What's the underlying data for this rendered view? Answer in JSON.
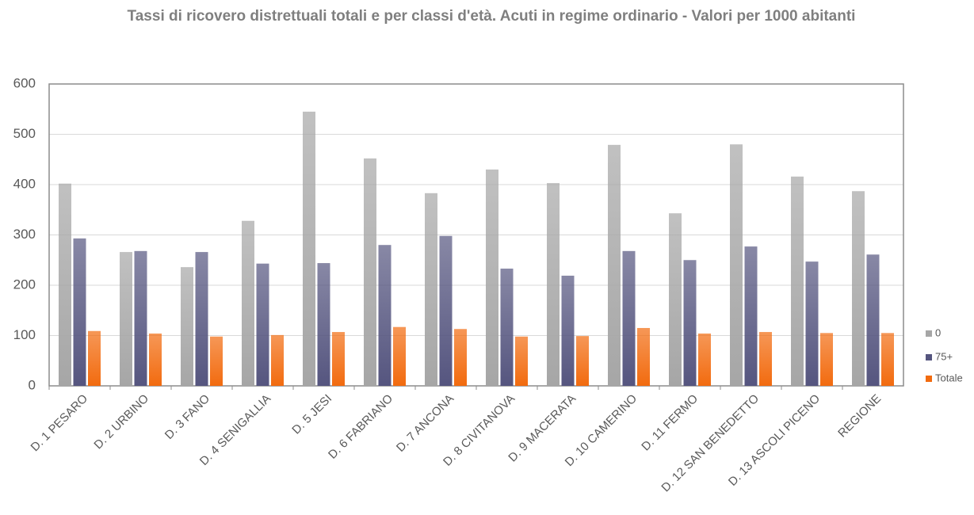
{
  "chart_data": {
    "type": "bar",
    "title": "Tassi di ricovero distrettuali totali e per classi d'età. Acuti in regime ordinario - Valori per 1000 abitanti",
    "categories": [
      "D. 1 PESARO",
      "D. 2 URBINO",
      "D. 3 FANO",
      "D. 4 SENIGALLIA",
      "D. 5 JESI",
      "D. 6 FABRIANO",
      "D. 7 ANCONA",
      "D. 8 CIVITANOVA",
      "D. 9 MACERATA",
      "D. 10 CAMERINO",
      "D. 11 FERMO",
      "D. 12 SAN BENEDETTO",
      "D. 13 ASCOLI PICENO",
      "REGIONE"
    ],
    "series": [
      {
        "name": "0",
        "color": "#a6a6a6",
        "values": [
          402,
          266,
          236,
          328,
          545,
          452,
          383,
          430,
          403,
          479,
          343,
          480,
          416,
          387
        ]
      },
      {
        "name": "75+",
        "color": "#55557f",
        "values": [
          293,
          268,
          266,
          243,
          244,
          280,
          298,
          233,
          219,
          268,
          250,
          277,
          247,
          261
        ]
      },
      {
        "name": "Totale",
        "color": "#f26b0f",
        "values": [
          109,
          104,
          98,
          101,
          107,
          117,
          113,
          98,
          99,
          115,
          104,
          107,
          105,
          105
        ]
      }
    ],
    "ylim": [
      0,
      600
    ],
    "yticks": [
      0,
      100,
      200,
      300,
      400,
      500,
      600
    ],
    "grid": true,
    "legend": "right"
  }
}
